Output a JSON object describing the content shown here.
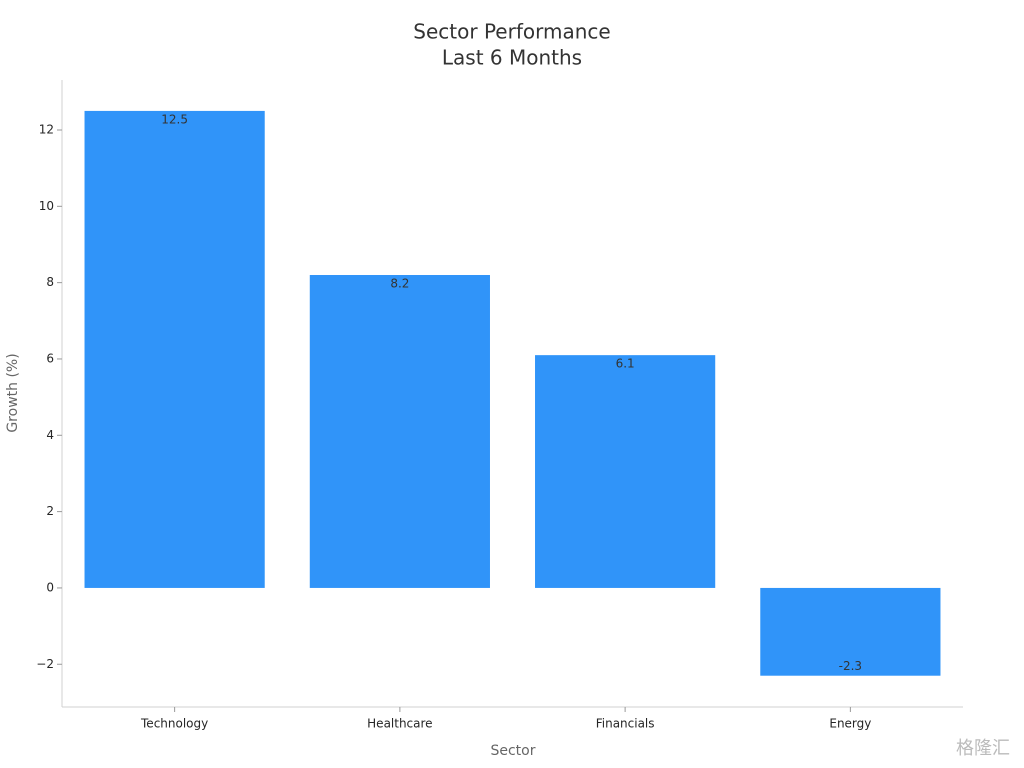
{
  "chart_data": {
    "type": "bar",
    "title": "Sector Performance",
    "subtitle": "Last 6 Months",
    "x_label": "Sector",
    "y_label": "Growth (%)",
    "categories": [
      "Technology",
      "Healthcare",
      "Financials",
      "Energy"
    ],
    "values": [
      12.5,
      8.2,
      6.1,
      -2.3
    ],
    "color": "#3094f9",
    "ylim": [
      -3.12,
      13.31
    ],
    "yticks": [
      {
        "value": -2,
        "label": "−2"
      },
      0,
      2,
      4,
      6,
      8,
      10,
      12
    ],
    "grid": false,
    "watermark": "格隆汇"
  }
}
